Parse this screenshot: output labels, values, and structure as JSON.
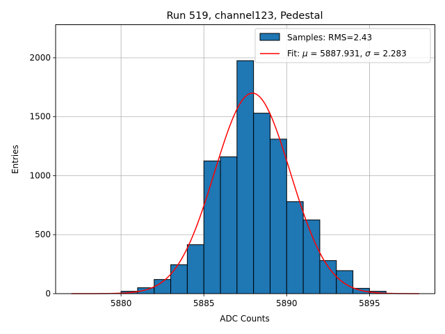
{
  "chart_data": {
    "type": "bar",
    "subtype": "histogram",
    "title": "Run 519, channel123, Pedestal",
    "xlabel": "ADC Counts",
    "ylabel": "Entries",
    "xlim": [
      5876.05,
      5898.95
    ],
    "ylim": [
      0,
      2280
    ],
    "xticks": [
      5880,
      5885,
      5890,
      5895
    ],
    "yticks": [
      0,
      500,
      1000,
      1500,
      2000
    ],
    "grid": true,
    "legend_position": "top-right",
    "bins": {
      "edges": [
        5880,
        5881,
        5882,
        5883,
        5884,
        5885,
        5886,
        5887,
        5888,
        5889,
        5890,
        5891,
        5892,
        5893,
        5894,
        5895,
        5896
      ],
      "values": [
        20,
        50,
        120,
        245,
        415,
        1125,
        1160,
        1975,
        1530,
        1310,
        780,
        625,
        280,
        195,
        45,
        20
      ]
    },
    "series": [
      {
        "name": "Samples",
        "label": "Samples: RMS=2.43",
        "kind": "histogram",
        "color": "#1f77b4",
        "edgecolor": "#000000"
      },
      {
        "name": "Fit",
        "label_prefix": "Fit: ",
        "mu_symbol": "μ",
        "mu_text": " = 5887.931, ",
        "sigma_symbol": "σ",
        "sigma_text": " = 2.283",
        "kind": "gaussian",
        "color": "#ff0000"
      }
    ],
    "fit": {
      "amplitude": 1700,
      "mu": 5887.931,
      "sigma": 2.283,
      "x_range": [
        5877.0,
        5898.0
      ]
    }
  }
}
